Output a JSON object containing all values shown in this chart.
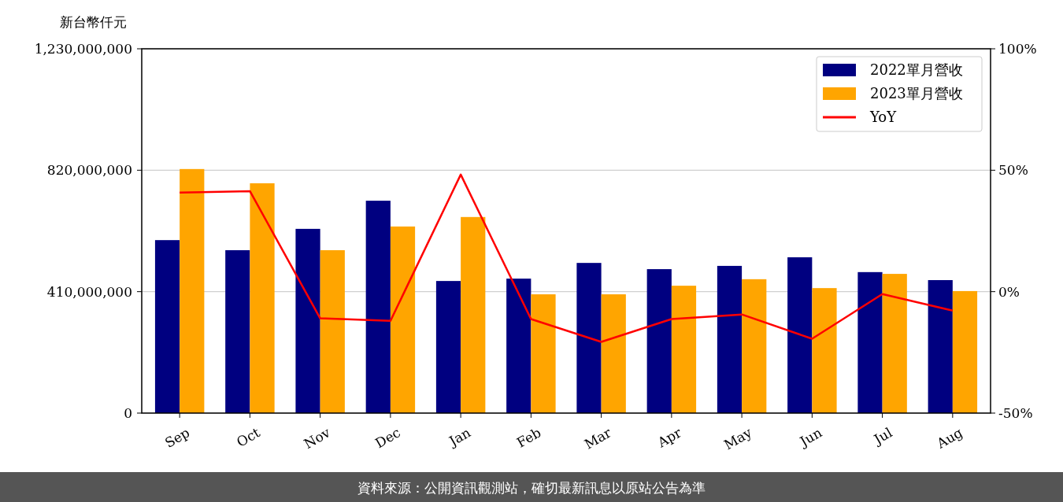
{
  "chart_data": {
    "type": "bar",
    "ylabel": "新台幣仟元",
    "categories": [
      "Sep",
      "Oct",
      "Nov",
      "Dec",
      "Jan",
      "Feb",
      "Mar",
      "Apr",
      "May",
      "Jun",
      "Jul",
      "Aug"
    ],
    "series": [
      {
        "name": "2022單月營收",
        "color": "#000080",
        "values": [
          584000000,
          550000000,
          622000000,
          717000000,
          446000000,
          454000000,
          507000000,
          486000000,
          497000000,
          526000000,
          476000000,
          449000000
        ]
      },
      {
        "name": "2023單月營收",
        "color": "#ffa500",
        "values": [
          824000000,
          776000000,
          550000000,
          630000000,
          662000000,
          401000000,
          401000000,
          430000000,
          452000000,
          422000000,
          470000000,
          412000000
        ]
      },
      {
        "name": "YoY",
        "type": "line",
        "axis": "y2",
        "color": "#ff0000",
        "values": [
          40.8,
          41.4,
          -11,
          -12,
          48.2,
          -11.3,
          -20.7,
          -11.3,
          -9.4,
          -19.4,
          -1,
          -7.8
        ]
      }
    ],
    "ylim": [
      0,
      1230000000
    ],
    "yticks": [
      {
        "value": 0,
        "label": "0"
      },
      {
        "value": 410000000,
        "label": "410,000,000"
      },
      {
        "value": 820000000,
        "label": "820,000,000"
      },
      {
        "value": 1230000000,
        "label": "1,230,000,000"
      }
    ],
    "y2lim": [
      -50,
      100
    ],
    "y2ticks": [
      {
        "value": -50,
        "label": "-50%"
      },
      {
        "value": 0,
        "label": "0%"
      },
      {
        "value": 50,
        "label": "50%"
      },
      {
        "value": 100,
        "label": "100%"
      }
    ],
    "grid": "y",
    "legend": "top right",
    "marker": "none",
    "line_style": "solid",
    "annotations": [
      "資料來源：公開資訊觀測站，確切最新訊息以原站公告為準"
    ]
  }
}
